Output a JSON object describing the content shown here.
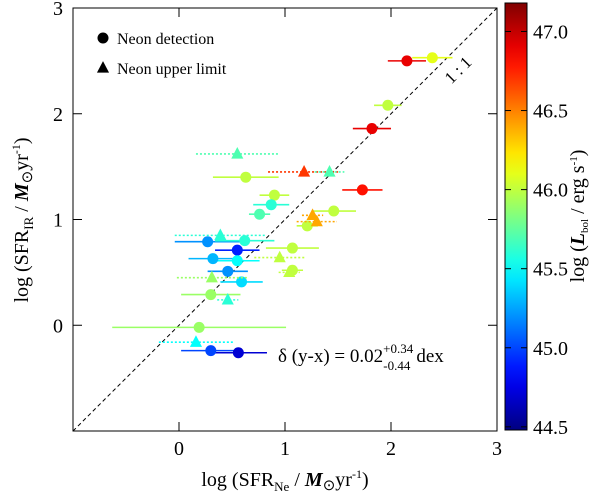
{
  "chart_data": {
    "type": "scatter",
    "xlabel": [
      "log (SFR",
      "Ne",
      " / ",
      "M",
      "⊙",
      "yr",
      "-1",
      ")"
    ],
    "ylabel": [
      "log (SFR",
      "IR",
      " / ",
      "M",
      "⊙",
      "yr",
      "-1",
      ")"
    ],
    "xlim": [
      -1,
      3
    ],
    "ylim": [
      -1,
      3
    ],
    "xticks": [
      0,
      1,
      2,
      3
    ],
    "yticks": [
      0,
      1,
      2,
      3
    ],
    "colormap": "jet",
    "clim": [
      44.48,
      47.18
    ],
    "clabel": [
      "log (",
      "L",
      "bol",
      " / erg s",
      "-1",
      ")"
    ],
    "cticks": [
      44.5,
      {
        "value": 45,
        "label": "45.0"
      },
      45.5,
      {
        "value": 46,
        "label": "46.0"
      },
      46.5,
      {
        "value": 47,
        "label": "47.0"
      }
    ],
    "annotations": [
      "1 : 1",
      "δ (y-x) = 0.02",
      "+0.34",
      "-0.44",
      "dex"
    ],
    "series": [
      {
        "name": "Neon detection",
        "marker": "circle",
        "linestyle": "solid",
        "x": [
          2.15,
          2.39,
          1.97,
          1.82,
          0.63,
          1.73,
          0.9,
          0.87,
          0.76,
          1.46,
          1.21,
          0.27,
          0.62,
          0.55,
          0.32,
          0.55,
          1.07,
          0.46,
          1.07,
          0.59,
          0.3,
          0.19,
          0.3,
          0.56
        ],
        "values": [
          2.5,
          2.53,
          2.08,
          1.86,
          1.4,
          1.28,
          1.23,
          1.14,
          1.05,
          1.08,
          0.94,
          0.79,
          0.8,
          0.71,
          0.63,
          0.61,
          0.73,
          0.51,
          0.52,
          0.41,
          0.29,
          -0.02,
          -0.24,
          -0.26
        ],
        "xerr": [
          0.18,
          0.19,
          0.13,
          0.18,
          0.31,
          0.19,
          0.14,
          0.17,
          0.1,
          0.21,
          0.1,
          0.31,
          0.28,
          0.21,
          0.23,
          0.21,
          0.25,
          0.19,
          0.1,
          0.2,
          0.28,
          0.82,
          0.28,
          0.27
        ],
        "lbol": [
          46.9,
          46.1,
          46.0,
          46.9,
          46.0,
          46.8,
          46.0,
          45.6,
          45.7,
          46.0,
          46.0,
          45.2,
          45.6,
          44.9,
          45.3,
          45.5,
          46.0,
          45.2,
          46.0,
          45.4,
          45.9,
          45.9,
          45.0,
          44.7
        ]
      },
      {
        "name": "Neon upper limit",
        "marker": "triangle",
        "linestyle": "dotted",
        "x": [
          0.55,
          1.18,
          1.42,
          1.26,
          1.3,
          0.39,
          0.95,
          1.04,
          0.31,
          0.46,
          0.16
        ],
        "values": [
          1.62,
          1.45,
          1.45,
          1.04,
          0.98,
          0.85,
          0.64,
          0.5,
          0.45,
          0.24,
          -0.16
        ],
        "xerr": [
          0.39,
          0.34,
          0.14,
          0.1,
          0.19,
          0.43,
          0.24,
          0.1,
          0.33,
          0.1,
          0.35
        ],
        "lbol": [
          45.7,
          46.7,
          45.7,
          46.4,
          46.4,
          45.6,
          46.0,
          46.0,
          45.9,
          45.6,
          45.5
        ]
      }
    ]
  }
}
